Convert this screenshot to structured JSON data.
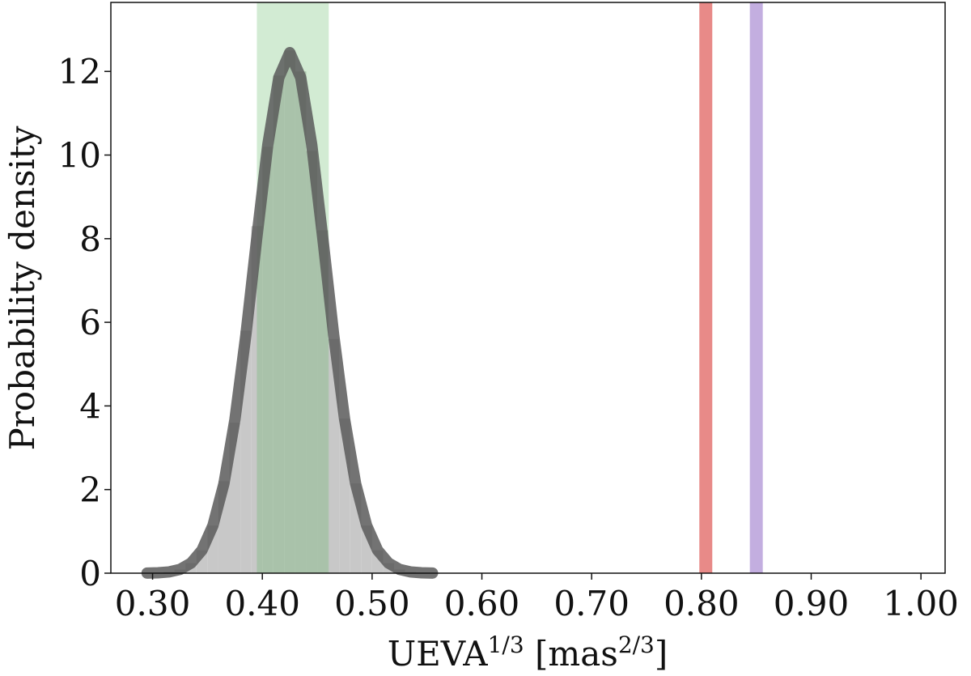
{
  "chart_data": {
    "type": "histogram",
    "xlabel": [
      "UEVA",
      "1/3",
      " [mas",
      "2/3",
      "]"
    ],
    "ylabel": "Probability density",
    "bins": [
      0.3,
      0.31,
      0.32,
      0.33,
      0.34,
      0.35,
      0.36,
      0.37,
      0.38,
      0.39,
      0.4,
      0.41,
      0.42,
      0.43,
      0.44,
      0.45,
      0.46,
      0.47,
      0.48,
      0.49,
      0.5,
      0.51,
      0.52,
      0.53,
      0.54,
      0.55
    ],
    "counts": [
      0.01,
      0.03,
      0.09,
      0.24,
      0.55,
      1.14,
      2.2,
      3.6,
      5.8,
      8.3,
      10.2,
      11.9,
      12.5,
      12.0,
      10.1,
      8.2,
      5.6,
      3.7,
      2.15,
      1.14,
      0.55,
      0.24,
      0.09,
      0.03,
      0.01
    ],
    "hist_color": "#c8c8c8",
    "curve": {
      "x": [
        0.295,
        0.305,
        0.315,
        0.325,
        0.335,
        0.345,
        0.355,
        0.365,
        0.375,
        0.385,
        0.395,
        0.405,
        0.415,
        0.425,
        0.435,
        0.445,
        0.455,
        0.465,
        0.475,
        0.485,
        0.495,
        0.505,
        0.515,
        0.525,
        0.535,
        0.545,
        0.555
      ],
      "values": [
        0.003,
        0.01,
        0.03,
        0.09,
        0.24,
        0.55,
        1.14,
        2.14,
        3.67,
        5.7,
        8.03,
        10.25,
        11.85,
        12.45,
        11.85,
        10.25,
        8.03,
        5.7,
        3.67,
        2.14,
        1.14,
        0.55,
        0.24,
        0.09,
        0.03,
        0.01,
        0.003
      ],
      "color": "#5a5a5a"
    },
    "span": [
      0.395,
      0.4605
    ],
    "span_color": "#4caf50",
    "vlines": [
      {
        "x": 0.804,
        "color": "#e88a88"
      },
      {
        "x": 0.85,
        "color": "#c3aee0"
      }
    ],
    "xlim": [
      0.262,
      1.022
    ],
    "ylim": [
      0,
      13.65
    ],
    "xticks": [
      {
        "value": 0.3,
        "label": "0.30"
      },
      {
        "value": 0.4,
        "label": "0.40"
      },
      {
        "value": 0.5,
        "label": "0.50"
      },
      {
        "value": 0.6,
        "label": "0.60"
      },
      {
        "value": 0.7,
        "label": "0.70"
      },
      {
        "value": 0.8,
        "label": "0.80"
      },
      {
        "value": 0.9,
        "label": "0.90"
      },
      {
        "value": 1.0,
        "label": "1.00"
      }
    ],
    "yticks": [
      0,
      2,
      4,
      6,
      8,
      10,
      12
    ]
  }
}
